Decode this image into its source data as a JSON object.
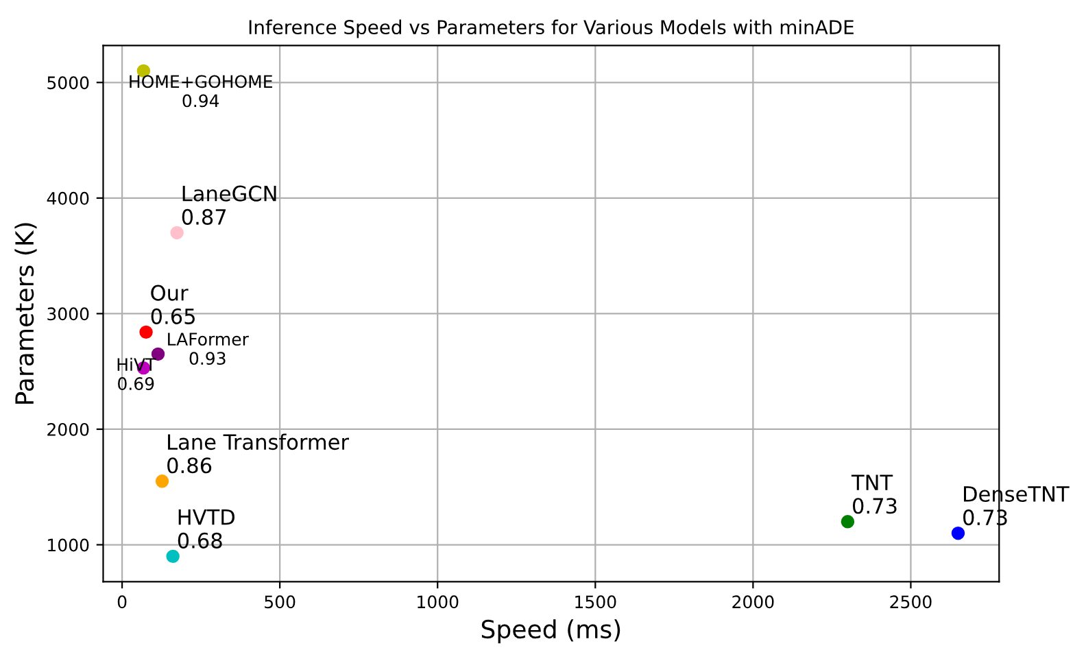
{
  "chart_data": {
    "type": "scatter",
    "title": "Inference Speed vs Parameters for Various Models with minADE",
    "xlabel": "Speed (ms)",
    "ylabel": "Parameters (K)",
    "x": [
      68,
      174,
      76,
      114,
      68,
      127,
      161,
      2300,
      2650
    ],
    "values": [
      5100,
      3700,
      2840,
      2650,
      2530,
      1550,
      900,
      1200,
      1100
    ],
    "colors": [
      "#bfbf00",
      "#ffc0cb",
      "#ff0000",
      "#800080",
      "#bf00bf",
      "#ffa500",
      "#00bfbf",
      "#008000",
      "#0000ff"
    ],
    "annotations": [
      {
        "text": "HOME+GOHOME\n0.94",
        "x": 68,
        "y": 5100
      },
      {
        "text": "LaneGCN\n0.87",
        "x": 174,
        "y": 3700
      },
      {
        "text": "Our\n0.65",
        "x": 76,
        "y": 2840
      },
      {
        "text": "LAFormer\n0.93",
        "x": 114,
        "y": 2650
      },
      {
        "text": "HiVT\n0.69",
        "x": 68,
        "y": 2530
      },
      {
        "text": "Lane Transformer\n0.86",
        "x": 127,
        "y": 1550
      },
      {
        "text": "HVTD\n0.68",
        "x": 161,
        "y": 900
      },
      {
        "text": "TNT\n0.73",
        "x": 2300,
        "y": 1200
      },
      {
        "text": "DenseTNT\n0.73",
        "x": 2650,
        "y": 1100
      }
    ],
    "xlim": [
      -60,
      2780
    ],
    "ylim": [
      680,
      5320
    ],
    "xticks": [
      0,
      500,
      1000,
      1500,
      2000,
      2500
    ],
    "yticks": [
      1000,
      2000,
      3000,
      4000,
      5000
    ],
    "grid": true,
    "marker": "circle"
  }
}
